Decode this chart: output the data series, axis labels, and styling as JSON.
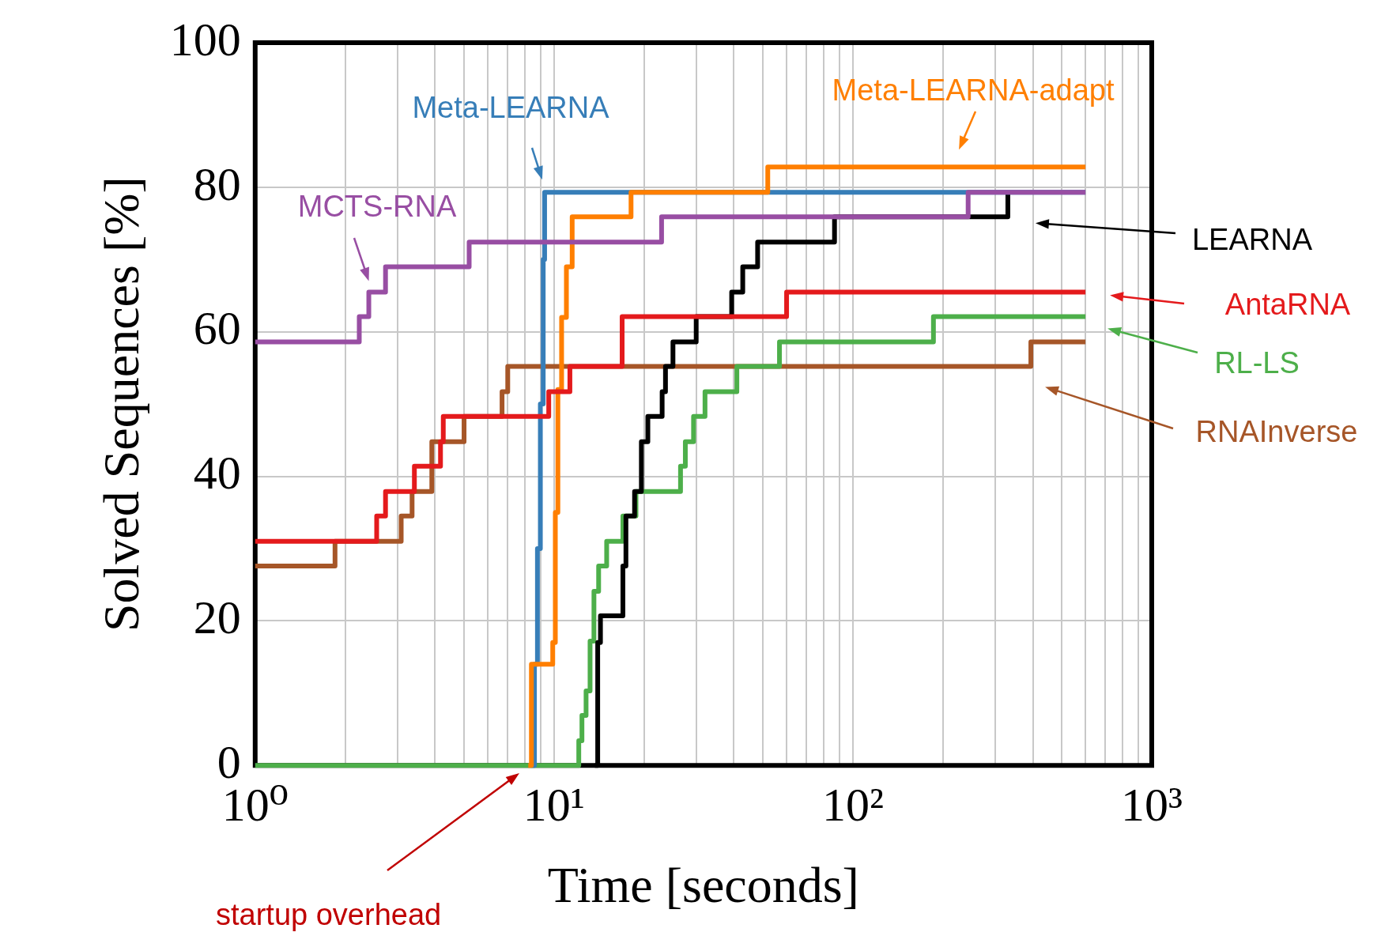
{
  "chart_data": {
    "type": "step",
    "xlabel": "Time [seconds]",
    "ylabel": "Solved Sequences [%]",
    "log": "x",
    "grid": true,
    "legend": "right",
    "xlim": [
      1,
      1000
    ],
    "ylim": [
      0,
      100
    ],
    "xticks": [
      {
        "value": 1,
        "label": "10⁰"
      },
      {
        "value": 2,
        "label": null
      },
      {
        "value": 3,
        "label": null
      },
      {
        "value": 4,
        "label": null
      },
      {
        "value": 5,
        "label": null
      },
      {
        "value": 6,
        "label": null
      },
      {
        "value": 7,
        "label": null
      },
      {
        "value": 8,
        "label": null
      },
      {
        "value": 9,
        "label": null
      },
      {
        "value": 10,
        "label": "10¹"
      },
      {
        "value": 20,
        "label": null
      },
      {
        "value": 30,
        "label": null
      },
      {
        "value": 40,
        "label": null
      },
      {
        "value": 50,
        "label": null
      },
      {
        "value": 60,
        "label": null
      },
      {
        "value": 70,
        "label": null
      },
      {
        "value": 80,
        "label": null
      },
      {
        "value": 90,
        "label": null
      },
      {
        "value": 100,
        "label": "10²"
      },
      {
        "value": 200,
        "label": null
      },
      {
        "value": 300,
        "label": null
      },
      {
        "value": 400,
        "label": null
      },
      {
        "value": 500,
        "label": null
      },
      {
        "value": 600,
        "label": null
      },
      {
        "value": 700,
        "label": null
      },
      {
        "value": 800,
        "label": null
      },
      {
        "value": 900,
        "label": null
      },
      {
        "value": 1000,
        "label": "10³"
      }
    ],
    "yticks": [
      0,
      20,
      40,
      60,
      80,
      100
    ],
    "annotations": [
      "startup overhead"
    ],
    "series": [
      {
        "name": "MCTS-RNA",
        "color": "#984ea3",
        "x": [
          1,
          2.23,
          2.4,
          2.73,
          5.2,
          22.9,
          243,
          600
        ],
        "values": [
          58.6,
          62.1,
          65.5,
          69,
          72.4,
          75.9,
          79.3,
          79.3
        ]
      },
      {
        "name": "AntaRNA",
        "color": "#e41a1c",
        "x": [
          1,
          2.55,
          2.73,
          3.41,
          4.17,
          4.26,
          9.6,
          11.3,
          16.9,
          60,
          600
        ],
        "values": [
          31,
          34.5,
          37.9,
          41.4,
          44.8,
          48.3,
          51.7,
          55.2,
          62.1,
          65.5,
          65.5
        ]
      },
      {
        "name": "Meta-LEARNA-adapt",
        "color": "#ff7f00",
        "x": [
          8.2,
          8.4,
          9.9,
          10.1,
          10.3,
          10.6,
          11.0,
          11.5,
          18.1,
          51.9,
          600
        ],
        "values": [
          0,
          14,
          17,
          35,
          52,
          62,
          69,
          75.9,
          79.3,
          82.8,
          82.8
        ]
      },
      {
        "name": "Meta-LEARNA",
        "color": "#377eb8",
        "x": [
          8.4,
          8.6,
          8.8,
          9.0,
          9.2,
          9.3,
          600
        ],
        "values": [
          0,
          14,
          30,
          50,
          70,
          79.3,
          79.3
        ]
      },
      {
        "name": "LEARNA",
        "color": "#000000",
        "x": [
          13.7,
          14,
          14.3,
          17.0,
          17.4,
          18.6,
          19.6,
          20.6,
          23.0,
          23.6,
          25,
          29.9,
          39.3,
          42.8,
          48,
          86.8,
          330
        ],
        "values": [
          0,
          17,
          20.7,
          27.6,
          34.5,
          37.9,
          44.8,
          48.3,
          51.7,
          55.2,
          58.6,
          62.1,
          65.5,
          69,
          72.4,
          75.9,
          79.3
        ]
      },
      {
        "name": "RL-LS",
        "color": "#4daf4a",
        "x": [
          1,
          12.1,
          12.4,
          12.8,
          13.2,
          13.6,
          14.1,
          15.0,
          17.0,
          18.8,
          26.5,
          27.5,
          29.3,
          32,
          40.9,
          56.8,
          186,
          600
        ],
        "values": [
          0,
          3.4,
          6.9,
          10.3,
          17.2,
          24.1,
          27.6,
          31,
          34.5,
          37.9,
          41.4,
          44.8,
          48.3,
          51.7,
          55.2,
          58.6,
          62.1,
          62.1
        ]
      },
      {
        "name": "RNAInverse",
        "color": "#a65628",
        "x": [
          1,
          1.85,
          3.08,
          3.35,
          3.9,
          5.0,
          6.7,
          7.0,
          394,
          600
        ],
        "values": [
          27.6,
          31,
          34.5,
          37.9,
          44.8,
          48.3,
          51.7,
          55.2,
          58.6,
          58.6
        ]
      }
    ]
  }
}
